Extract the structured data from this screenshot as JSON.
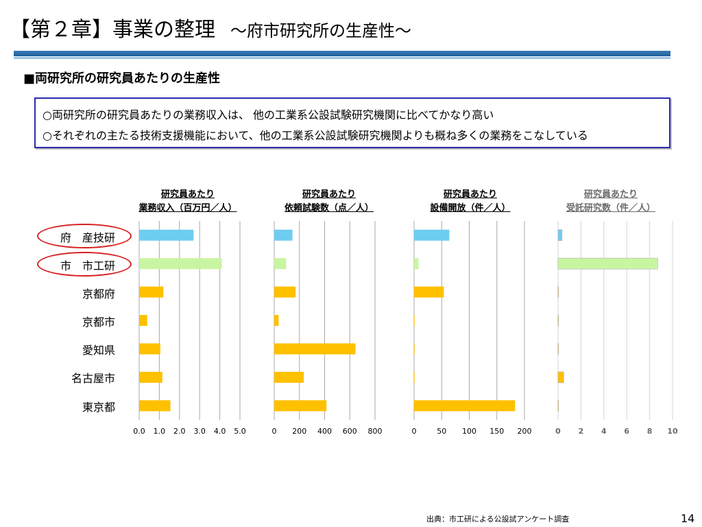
{
  "header": {
    "title": "【第２章】事業の整理",
    "subtitle": "～府市研究所の生産性～"
  },
  "section_title": "■両研究所の研究員あたりの生産性",
  "summary": {
    "line1": "○両研究所の研究員あたりの業務収入は、 他の工業系公設試験研究機関に比べてかなり高い",
    "line2": "○それぞれの主たる技術支援機能において、他の工業系公設試験研究機関よりも概ね多くの業務をこなしている"
  },
  "categories": [
    "府　産技研",
    "市　市工研",
    "京都府",
    "京都市",
    "愛知県",
    "名古屋市",
    "東京都"
  ],
  "colors": {
    "fu": "#6fcdf2",
    "shi": "#c8f5a2",
    "other": "#ffc000",
    "accent": "#2a2ab0"
  },
  "chart_data": [
    {
      "type": "bar",
      "title_line1": "研究員あたり",
      "title_line2": "業務収入（百万円／人）",
      "values": [
        2.7,
        4.1,
        1.2,
        0.4,
        1.05,
        1.15,
        1.55
      ],
      "xlim": [
        0,
        5
      ],
      "ticks": [
        "0.0",
        "1.0",
        "2.0",
        "3.0",
        "4.0",
        "5.0"
      ]
    },
    {
      "type": "bar",
      "title_line1": "研究員あたり",
      "title_line2": "依頼試験数（点／人）",
      "values": [
        145,
        95,
        170,
        35,
        645,
        235,
        415
      ],
      "xlim": [
        0,
        800
      ],
      "ticks": [
        "0",
        "200",
        "400",
        "600",
        "800"
      ]
    },
    {
      "type": "bar",
      "title_line1": "研究員あたり",
      "title_line2": "設備開放（件／人）",
      "values": [
        64,
        8,
        54,
        1,
        1,
        1,
        183
      ],
      "xlim": [
        0,
        200
      ],
      "ticks": [
        "0",
        "50",
        "100",
        "150",
        "200"
      ]
    },
    {
      "type": "bar",
      "title_line1": "研究員あたり",
      "title_line2": "受託研究数（件／人）",
      "values": [
        0.35,
        8.7,
        0.05,
        0.05,
        0.05,
        0.5,
        0.05
      ],
      "xlim": [
        0,
        10
      ],
      "ticks": [
        "0",
        "2",
        "4",
        "6",
        "8",
        "10"
      ]
    }
  ],
  "footer": {
    "source": "出典：市工研による公設試アンケート調査",
    "page": "14"
  }
}
